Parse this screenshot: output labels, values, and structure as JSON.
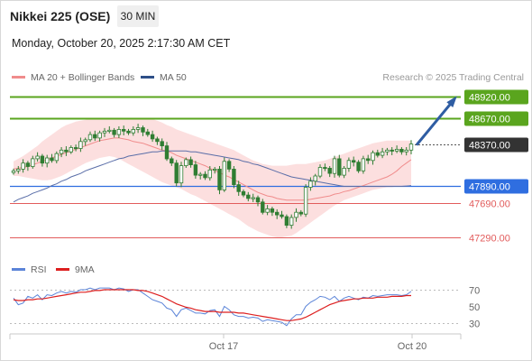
{
  "header": {
    "title": "Nikkei 225 (OSE)",
    "timeframe": "30 MIN",
    "datetime": "Monday, October 20, 2025 2:17:30 AM CET"
  },
  "legend": {
    "ma20_label": "MA 20 + Bollinger Bands",
    "ma50_label": "MA 50",
    "credit": "Research © 2025 Trading Central"
  },
  "indicator_legend": {
    "rsi_label": "RSI",
    "ma9_label": "9MA"
  },
  "colors": {
    "candle": "#2f7d32",
    "ma20": "#e89a9a",
    "bollinger_fill": "#fbd9d9",
    "ma50": "#5a6ea8",
    "resistance": "#5aa51e",
    "pivot": "#2f6ee0",
    "support": "#e25c5c",
    "arrow": "#2f5da3",
    "last_price_badge": "#333333",
    "rsi": "#5b84d8",
    "rsi_ma9": "#dd1f1f"
  },
  "chart_data": [
    {
      "type": "candlestick",
      "title": "Nikkei 225 (OSE)",
      "timeframe": "30 MIN",
      "x_tick_labels": [
        "Oct 17",
        "Oct 20"
      ],
      "y_range": [
        47100,
        49050
      ],
      "last_price": 48370.0,
      "levels": [
        {
          "label": "48920.00",
          "value": 48920,
          "kind": "resistance"
        },
        {
          "label": "48670.00",
          "value": 48670,
          "kind": "resistance"
        },
        {
          "label": "48370.00",
          "value": 48370,
          "kind": "last"
        },
        {
          "label": "47890.00",
          "value": 47890,
          "kind": "pivot"
        },
        {
          "label": "47690.00",
          "value": 47690,
          "kind": "support"
        },
        {
          "label": "47290.00",
          "value": 47290,
          "kind": "support"
        }
      ],
      "forecast_arrow": {
        "from": 48370,
        "to": 48920
      },
      "close": [
        48060,
        48080,
        48150,
        48110,
        48200,
        48230,
        48150,
        48210,
        48180,
        48260,
        48300,
        48280,
        48330,
        48320,
        48400,
        48420,
        48480,
        48440,
        48500,
        48520,
        48530,
        48480,
        48540,
        48520,
        48500,
        48540,
        48560,
        48510,
        48480,
        48430,
        48400,
        48350,
        48200,
        48150,
        47920,
        48120,
        48190,
        48130,
        48010,
        48020,
        47980,
        48070,
        48080,
        47840,
        48170,
        48080,
        47900,
        47820,
        47780,
        47740,
        47750,
        47700,
        47580,
        47620,
        47580,
        47550,
        47530,
        47430,
        47520,
        47580,
        47560,
        47870,
        47940,
        48000,
        48100,
        48090,
        48030,
        48200,
        48010,
        48090,
        48180,
        48160,
        48060,
        48200,
        48180,
        48270,
        48240,
        48280,
        48300,
        48290,
        48310,
        48280,
        48300,
        48370
      ],
      "ma20": [
        48080,
        48090,
        48100,
        48110,
        48130,
        48150,
        48170,
        48190,
        48210,
        48230,
        48250,
        48270,
        48290,
        48310,
        48330,
        48350,
        48370,
        48390,
        48410,
        48420,
        48430,
        48440,
        48440,
        48430,
        48420,
        48400,
        48390,
        48380,
        48360,
        48340,
        48320,
        48300,
        48290,
        48270,
        48240,
        48220,
        48200,
        48180,
        48160,
        48140,
        48120,
        48090,
        48060,
        48040,
        48010,
        47990,
        47960,
        47930,
        47900,
        47870,
        47840,
        47810,
        47790,
        47770,
        47760,
        47740,
        47730,
        47720,
        47720,
        47720,
        47720,
        47720,
        47730,
        47740,
        47750,
        47760,
        47770,
        47790,
        47800,
        47820,
        47830,
        47850,
        47870,
        47890,
        47910,
        47930,
        47950,
        47970,
        47990,
        48020,
        48060,
        48110,
        48150,
        48190
      ],
      "ma50": [
        47700,
        47730,
        47750,
        47770,
        47800,
        47820,
        47840,
        47860,
        47890,
        47910,
        47940,
        47960,
        47990,
        48010,
        48030,
        48060,
        48080,
        48100,
        48120,
        48140,
        48160,
        48180,
        48200,
        48210,
        48230,
        48240,
        48250,
        48260,
        48270,
        48280,
        48280,
        48290,
        48290,
        48290,
        48290,
        48290,
        48290,
        48280,
        48280,
        48270,
        48260,
        48250,
        48240,
        48230,
        48220,
        48210,
        48200,
        48190,
        48170,
        48160,
        48140,
        48130,
        48110,
        48090,
        48070,
        48050,
        48030,
        48010,
        47990,
        47980,
        47970,
        47960,
        47950,
        47940,
        47930,
        47920,
        47910,
        47900,
        47890,
        47880,
        47880,
        47880,
        47880,
        47880,
        47880,
        47880,
        47880,
        47880,
        47880,
        47880,
        47880,
        47880,
        47885,
        47890
      ],
      "bollinger_upper": [
        48170,
        48200,
        48230,
        48270,
        48310,
        48350,
        48400,
        48440,
        48480,
        48520,
        48560,
        48590,
        48610,
        48630,
        48640,
        48650,
        48660,
        48665,
        48670,
        48670,
        48670,
        48670,
        48670,
        48670,
        48670,
        48670,
        48670,
        48670,
        48670,
        48660,
        48640,
        48620,
        48590,
        48570,
        48540,
        48520,
        48500,
        48480,
        48460,
        48440,
        48420,
        48400,
        48380,
        48360,
        48340,
        48320,
        48300,
        48270,
        48240,
        48210,
        48180,
        48160,
        48140,
        48130,
        48120,
        48120,
        48120,
        48120,
        48130,
        48140,
        48140,
        48140,
        48150,
        48160,
        48170,
        48180,
        48200,
        48220,
        48240,
        48260,
        48280,
        48300,
        48320,
        48340,
        48360,
        48380,
        48390,
        48400,
        48410,
        48410,
        48410,
        48410,
        48410,
        48410
      ],
      "bollinger_lower": [
        48000,
        48000,
        47990,
        47980,
        47970,
        47960,
        47950,
        47950,
        47960,
        47980,
        48000,
        48030,
        48060,
        48090,
        48120,
        48150,
        48170,
        48190,
        48210,
        48220,
        48230,
        48220,
        48200,
        48170,
        48140,
        48110,
        48080,
        48050,
        48020,
        47990,
        47960,
        47930,
        47910,
        47890,
        47870,
        47850,
        47820,
        47790,
        47770,
        47740,
        47710,
        47680,
        47650,
        47620,
        47590,
        47560,
        47530,
        47500,
        47460,
        47420,
        47390,
        47360,
        47340,
        47320,
        47300,
        47290,
        47290,
        47300,
        47310,
        47340,
        47380,
        47420,
        47460,
        47500,
        47540,
        47580,
        47620,
        47660,
        47690,
        47720,
        47740,
        47760,
        47780,
        47800,
        47820,
        47840,
        47850,
        47860,
        47870,
        47870,
        47880,
        47880,
        47890,
        47900
      ]
    },
    {
      "type": "line",
      "series": [
        {
          "name": "RSI",
          "values": [
            60,
            52,
            54,
            62,
            60,
            64,
            58,
            64,
            63,
            66,
            68,
            66,
            68,
            67,
            70,
            70,
            72,
            70,
            72,
            72,
            72,
            70,
            72,
            71,
            68,
            70,
            70,
            66,
            62,
            58,
            56,
            54,
            48,
            46,
            38,
            46,
            48,
            45,
            42,
            42,
            41,
            45,
            46,
            38,
            50,
            46,
            40,
            38,
            38,
            36,
            37,
            36,
            32,
            34,
            33,
            32,
            31,
            27,
            35,
            40,
            40,
            50,
            55,
            58,
            62,
            61,
            58,
            62,
            56,
            60,
            62,
            60,
            58,
            61,
            60,
            63,
            62,
            63,
            64,
            64,
            64,
            63,
            64,
            68
          ]
        },
        {
          "name": "9MA",
          "values": [
            58,
            57,
            57,
            58,
            58,
            59,
            59,
            60,
            61,
            62,
            63,
            64,
            65,
            66,
            67,
            67,
            68,
            69,
            69,
            70,
            70,
            70,
            70,
            70,
            70,
            70,
            69,
            69,
            68,
            66,
            64,
            62,
            59,
            56,
            53,
            51,
            49,
            48,
            46,
            45,
            44,
            44,
            44,
            43,
            43,
            43,
            43,
            42,
            42,
            41,
            40,
            39,
            38,
            37,
            36,
            35,
            34,
            33,
            33,
            34,
            35,
            37,
            40,
            43,
            46,
            49,
            52,
            54,
            56,
            57,
            58,
            59,
            59,
            60,
            60,
            60,
            61,
            61,
            61,
            62,
            62,
            62,
            63,
            63
          ]
        }
      ],
      "y_ticks": [
        70,
        50,
        30
      ],
      "y_range": [
        20,
        80
      ]
    }
  ]
}
